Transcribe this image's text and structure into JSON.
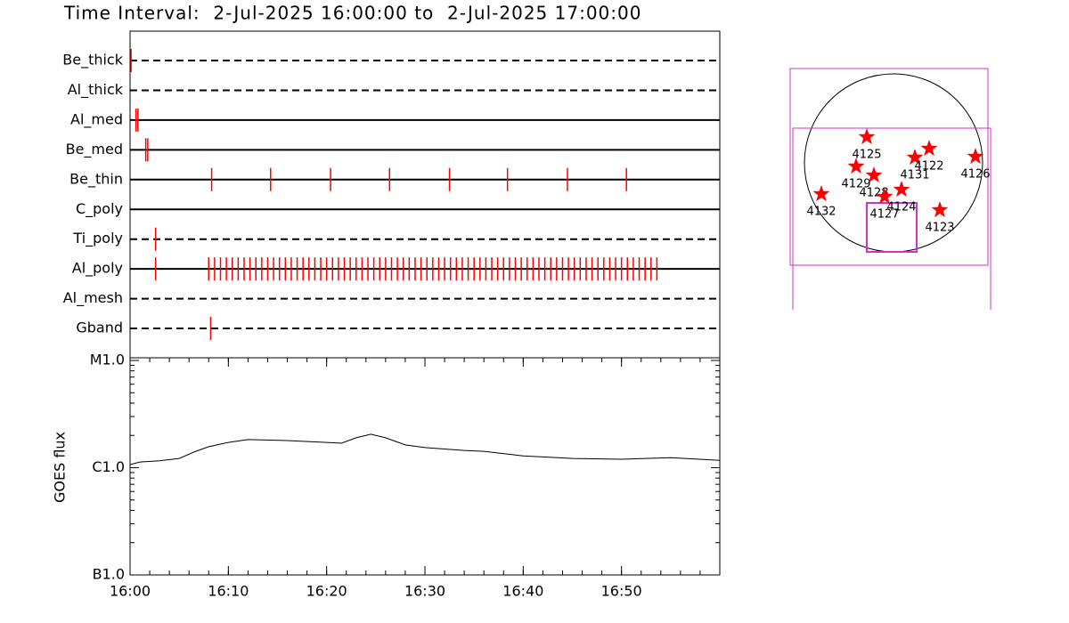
{
  "title": "Time Interval:  2-Jul-2025 16:00:00 to  2-Jul-2025 17:00:00",
  "chart_data": [
    {
      "type": "timeline",
      "xlim": [
        0,
        60
      ],
      "color": "#ff0000",
      "rows": [
        {
          "name": "Be_thick",
          "line_style": "dashed",
          "times": [
            0.1
          ]
        },
        {
          "name": "Al_thick",
          "line_style": "dashed",
          "times": []
        },
        {
          "name": "Al_med",
          "line_style": "solid",
          "times": [
            0.6,
            0.8
          ]
        },
        {
          "name": "Be_med",
          "line_style": "solid",
          "times": [
            1.6,
            1.8
          ]
        },
        {
          "name": "Be_thin",
          "line_style": "solid",
          "times": [
            8.3,
            14.3,
            20.4,
            26.4,
            32.5,
            38.4,
            44.5,
            50.5
          ]
        },
        {
          "name": "C_poly",
          "line_style": "solid",
          "times": []
        },
        {
          "name": "Ti_poly",
          "line_style": "dashed",
          "times": [
            2.6
          ]
        },
        {
          "name": "Al_poly",
          "line_style": "solid",
          "times": [
            2.6,
            8.0,
            8.6,
            9.2,
            9.8,
            10.4,
            11.0,
            11.6,
            12.2,
            12.8,
            13.4,
            14.0,
            14.6,
            15.2,
            15.8,
            16.4,
            17.0,
            17.6,
            18.2,
            18.8,
            19.4,
            20.0,
            20.6,
            21.2,
            21.8,
            22.4,
            23.0,
            23.6,
            24.2,
            24.8,
            25.4,
            26.0,
            26.6,
            27.2,
            27.8,
            28.4,
            29.0,
            29.6,
            30.2,
            30.8,
            31.4,
            32.0,
            32.6,
            33.2,
            33.8,
            34.4,
            35.0,
            35.6,
            36.2,
            36.8,
            37.4,
            38.0,
            38.6,
            39.2,
            39.8,
            40.4,
            41.0,
            41.6,
            42.2,
            42.8,
            43.4,
            44.0,
            44.6,
            45.2,
            45.8,
            46.4,
            47.0,
            47.6,
            48.2,
            48.8,
            49.4,
            50.0,
            50.6,
            51.2,
            51.8,
            52.4,
            53.0,
            53.6
          ]
        },
        {
          "name": "Al_mesh",
          "line_style": "dashed",
          "times": []
        },
        {
          "name": "Gband",
          "line_style": "dashed",
          "times": [
            8.2
          ]
        }
      ]
    },
    {
      "type": "line",
      "ylabel": "GOES flux",
      "log_scale": true,
      "color": "#000000",
      "x": [
        0,
        1,
        3,
        5,
        6.5,
        8,
        10,
        12,
        16,
        20,
        21.5,
        23,
        24.5,
        26,
        28,
        30,
        34,
        36,
        40,
        45,
        50,
        55,
        60
      ],
      "values": [
        1.07e-06,
        1.13e-06,
        1.16e-06,
        1.22e-06,
        1.4e-06,
        1.57e-06,
        1.72e-06,
        1.83e-06,
        1.79e-06,
        1.72e-06,
        1.69e-06,
        1.9e-06,
        2.05e-06,
        1.9e-06,
        1.63e-06,
        1.54e-06,
        1.45e-06,
        1.42e-06,
        1.29e-06,
        1.22e-06,
        1.2e-06,
        1.24e-06,
        1.17e-06
      ],
      "xlim": [
        0,
        60
      ],
      "xticks": [
        {
          "value": 0,
          "label": "16:00"
        },
        {
          "value": 10,
          "label": "16:10"
        },
        {
          "value": 20,
          "label": "16:20"
        },
        {
          "value": 30,
          "label": "16:30"
        },
        {
          "value": 40,
          "label": "16:40"
        },
        {
          "value": 50,
          "label": "16:50"
        }
      ],
      "ylim": [
        1e-07,
        1e-05
      ],
      "yticks": [
        {
          "value": 1e-07,
          "label": "B1.0"
        },
        {
          "value": 1e-06,
          "label": "C1.0"
        },
        {
          "value": 1e-05,
          "label": "M1.0"
        }
      ]
    }
  ],
  "solar_disk": {
    "regions": [
      "4125",
      "4129",
      "4128",
      "4127",
      "4124",
      "4131",
      "4122",
      "4126",
      "4132",
      "4123"
    ]
  }
}
